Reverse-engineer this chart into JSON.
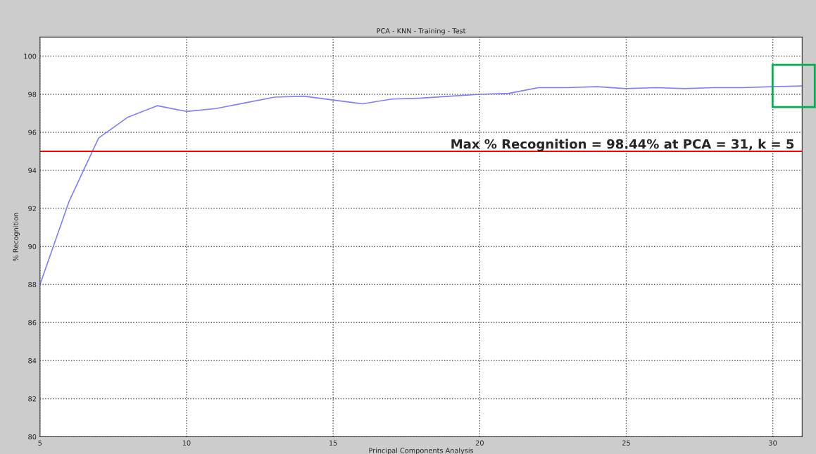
{
  "chart_data": {
    "type": "line",
    "title": "PCA - KNN - Training - Test",
    "xlabel": "Principal Components Analysis",
    "ylabel": "% Recognition",
    "x": [
      5,
      6,
      7,
      8,
      9,
      10,
      11,
      12,
      13,
      14,
      15,
      16,
      17,
      18,
      19,
      20,
      21,
      22,
      23,
      24,
      25,
      26,
      27,
      28,
      29,
      30,
      31
    ],
    "series": [
      {
        "color": "#7f7fff",
        "values": [
          88.0,
          92.4,
          95.7,
          96.8,
          97.4,
          97.1,
          97.25,
          97.55,
          97.85,
          97.9,
          97.7,
          97.5,
          97.75,
          97.8,
          97.9,
          98.0,
          98.05,
          98.35,
          98.35,
          98.4,
          98.3,
          98.35,
          98.3,
          98.35,
          98.35,
          98.4,
          98.44
        ]
      }
    ],
    "xlim": [
      5,
      31
    ],
    "xticks": [
      5,
      10,
      15,
      20,
      25,
      30
    ],
    "ylim": [
      80,
      101
    ],
    "yticks": [
      80,
      82,
      84,
      86,
      88,
      90,
      92,
      94,
      96,
      98,
      100
    ],
    "grid": true,
    "marker": "none",
    "line_style": "solid",
    "ref_lines": [
      {
        "axis": "y",
        "value": 95,
        "color": "#ff0000",
        "line_style": "solid"
      }
    ],
    "annotations": [
      "Max % Recognition = 98.44% at PCA = 31, k = 5"
    ]
  }
}
